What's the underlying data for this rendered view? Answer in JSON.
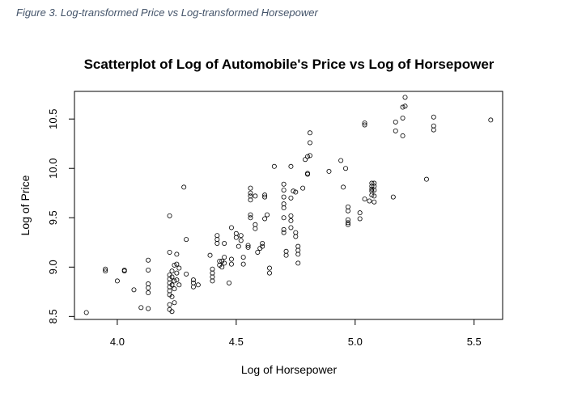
{
  "caption": "Figure 3. Log-transformed Price vs Log-transformed Horsepower",
  "chart_data": {
    "type": "scatter",
    "title": "Scatterplot of Log of Automobile's Price vs Log of Horsepower",
    "xlabel": "Log of Horsepower",
    "ylabel": "Log of Price",
    "xlim": [
      3.82,
      5.62
    ],
    "ylim": [
      8.47,
      10.78
    ],
    "xticks": [
      4.0,
      4.5,
      5.0,
      5.5
    ],
    "xtick_labels": [
      "4.0",
      "4.5",
      "5.0",
      "5.5"
    ],
    "yticks": [
      8.5,
      9.0,
      9.5,
      10.0,
      10.5
    ],
    "ytick_labels": [
      "8.5",
      "9.0",
      "9.5",
      "10.0",
      "10.5"
    ],
    "grid": false,
    "marker": "open-circle",
    "points": [
      [
        3.87,
        8.54
      ],
      [
        3.95,
        8.98
      ],
      [
        3.95,
        8.96
      ],
      [
        4.0,
        8.86
      ],
      [
        4.03,
        8.96
      ],
      [
        4.03,
        8.97
      ],
      [
        4.07,
        8.77
      ],
      [
        4.1,
        8.59
      ],
      [
        4.13,
        9.07
      ],
      [
        4.13,
        8.97
      ],
      [
        4.13,
        8.83
      ],
      [
        4.13,
        8.79
      ],
      [
        4.13,
        8.58
      ],
      [
        4.13,
        8.74
      ],
      [
        4.22,
        9.52
      ],
      [
        4.22,
        9.15
      ],
      [
        4.22,
        8.92
      ],
      [
        4.22,
        8.88
      ],
      [
        4.22,
        8.84
      ],
      [
        4.22,
        8.8
      ],
      [
        4.22,
        8.76
      ],
      [
        4.22,
        8.72
      ],
      [
        4.22,
        8.62
      ],
      [
        4.22,
        8.57
      ],
      [
        4.23,
        8.96
      ],
      [
        4.23,
        8.9
      ],
      [
        4.23,
        8.82
      ],
      [
        4.23,
        8.7
      ],
      [
        4.23,
        8.55
      ],
      [
        4.24,
        9.02
      ],
      [
        4.24,
        8.86
      ],
      [
        4.24,
        8.78
      ],
      [
        4.24,
        8.64
      ],
      [
        4.25,
        9.03
      ],
      [
        4.25,
        8.94
      ],
      [
        4.25,
        8.87
      ],
      [
        4.25,
        9.13
      ],
      [
        4.26,
        8.99
      ],
      [
        4.26,
        8.82
      ],
      [
        4.28,
        9.81
      ],
      [
        4.29,
        9.28
      ],
      [
        4.29,
        8.93
      ],
      [
        4.32,
        8.87
      ],
      [
        4.32,
        8.84
      ],
      [
        4.32,
        8.8
      ],
      [
        4.34,
        8.82
      ],
      [
        4.39,
        9.12
      ],
      [
        4.4,
        8.98
      ],
      [
        4.4,
        8.94
      ],
      [
        4.4,
        8.9
      ],
      [
        4.4,
        8.86
      ],
      [
        4.42,
        9.28
      ],
      [
        4.42,
        9.32
      ],
      [
        4.42,
        9.24
      ],
      [
        4.43,
        9.06
      ],
      [
        4.43,
        9.02
      ],
      [
        4.44,
        9.06
      ],
      [
        4.44,
        9.0
      ],
      [
        4.45,
        9.24
      ],
      [
        4.45,
        9.1
      ],
      [
        4.45,
        9.04
      ],
      [
        4.47,
        8.84
      ],
      [
        4.48,
        9.4
      ],
      [
        4.48,
        9.08
      ],
      [
        4.48,
        9.03
      ],
      [
        4.5,
        9.34
      ],
      [
        4.5,
        9.3
      ],
      [
        4.51,
        9.21
      ],
      [
        4.52,
        9.32
      ],
      [
        4.52,
        9.27
      ],
      [
        4.53,
        9.1
      ],
      [
        4.53,
        9.03
      ],
      [
        4.55,
        9.22
      ],
      [
        4.55,
        9.2
      ],
      [
        4.56,
        9.8
      ],
      [
        4.56,
        9.75
      ],
      [
        4.56,
        9.72
      ],
      [
        4.56,
        9.68
      ],
      [
        4.56,
        9.53
      ],
      [
        4.56,
        9.5
      ],
      [
        4.58,
        9.72
      ],
      [
        4.58,
        9.43
      ],
      [
        4.58,
        9.39
      ],
      [
        4.59,
        9.15
      ],
      [
        4.6,
        9.19
      ],
      [
        4.61,
        9.24
      ],
      [
        4.61,
        9.21
      ],
      [
        4.62,
        9.73
      ],
      [
        4.62,
        9.71
      ],
      [
        4.62,
        9.49
      ],
      [
        4.63,
        9.53
      ],
      [
        4.64,
        8.99
      ],
      [
        4.64,
        8.94
      ],
      [
        4.66,
        10.02
      ],
      [
        4.7,
        9.84
      ],
      [
        4.7,
        9.78
      ],
      [
        4.7,
        9.71
      ],
      [
        4.7,
        9.64
      ],
      [
        4.7,
        9.6
      ],
      [
        4.7,
        9.5
      ],
      [
        4.7,
        9.38
      ],
      [
        4.7,
        9.35
      ],
      [
        4.71,
        9.16
      ],
      [
        4.71,
        9.12
      ],
      [
        4.73,
        10.02
      ],
      [
        4.73,
        9.7
      ],
      [
        4.73,
        9.52
      ],
      [
        4.73,
        9.47
      ],
      [
        4.73,
        9.4
      ],
      [
        4.74,
        9.77
      ],
      [
        4.75,
        9.76
      ],
      [
        4.75,
        9.35
      ],
      [
        4.75,
        9.31
      ],
      [
        4.76,
        9.21
      ],
      [
        4.76,
        9.17
      ],
      [
        4.76,
        9.13
      ],
      [
        4.76,
        9.04
      ],
      [
        4.78,
        9.8
      ],
      [
        4.79,
        10.09
      ],
      [
        4.8,
        10.12
      ],
      [
        4.8,
        9.95
      ],
      [
        4.8,
        9.94
      ],
      [
        4.81,
        10.36
      ],
      [
        4.81,
        10.26
      ],
      [
        4.81,
        10.13
      ],
      [
        4.89,
        9.97
      ],
      [
        4.94,
        10.08
      ],
      [
        4.95,
        9.81
      ],
      [
        4.96,
        10.0
      ],
      [
        4.97,
        9.61
      ],
      [
        4.97,
        9.57
      ],
      [
        4.97,
        9.48
      ],
      [
        4.97,
        9.45
      ],
      [
        4.97,
        9.43
      ],
      [
        5.02,
        9.55
      ],
      [
        5.02,
        9.49
      ],
      [
        5.04,
        9.69
      ],
      [
        5.04,
        10.46
      ],
      [
        5.04,
        10.44
      ],
      [
        5.06,
        9.67
      ],
      [
        5.07,
        9.85
      ],
      [
        5.07,
        9.82
      ],
      [
        5.07,
        9.79
      ],
      [
        5.07,
        9.77
      ],
      [
        5.07,
        9.73
      ],
      [
        5.08,
        9.85
      ],
      [
        5.08,
        9.82
      ],
      [
        5.08,
        9.78
      ],
      [
        5.08,
        9.72
      ],
      [
        5.08,
        9.66
      ],
      [
        5.16,
        9.71
      ],
      [
        5.17,
        10.47
      ],
      [
        5.17,
        10.38
      ],
      [
        5.2,
        10.62
      ],
      [
        5.2,
        10.51
      ],
      [
        5.2,
        10.33
      ],
      [
        5.21,
        10.72
      ],
      [
        5.21,
        10.63
      ],
      [
        5.3,
        9.89
      ],
      [
        5.33,
        10.52
      ],
      [
        5.33,
        10.43
      ],
      [
        5.33,
        10.39
      ],
      [
        5.57,
        10.49
      ]
    ]
  }
}
